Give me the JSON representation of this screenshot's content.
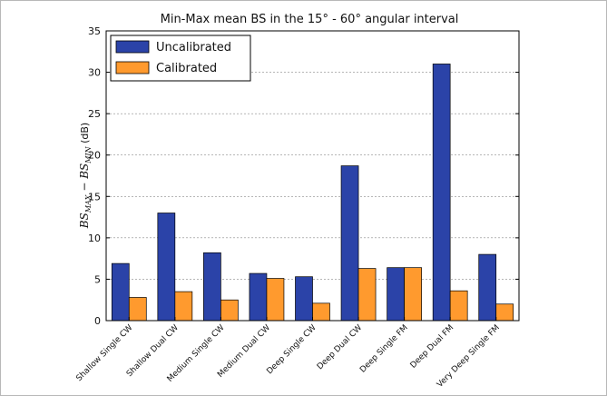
{
  "chart_data": {
    "type": "bar",
    "title": "Min-Max mean BS in the 15° - 60°  angular interval",
    "ylabel": "BS_MAX − BS_MIN (dB)",
    "ylabel_main": "BS",
    "ylabel_sub_max": "MAX",
    "ylabel_minus": " − ",
    "ylabel_sub_min": "MIN",
    "ylabel_unit": " (dB)",
    "xlabel": "",
    "ylim": [
      0,
      35
    ],
    "yticks": [
      0,
      5,
      10,
      15,
      20,
      25,
      30,
      35
    ],
    "grid": "horizontal-dashed",
    "legend_position": "top-left",
    "categories": [
      "Shallow Single CW",
      "Shallow Dual CW",
      "Medium Single CW",
      "Medium Dual CW",
      "Deep Single CW",
      "Deep Dual CW",
      "Deep Single FM",
      "Deep Dual FM",
      "Very Deep Single FM"
    ],
    "series": [
      {
        "name": "Uncalibrated",
        "color": "#2b43a8",
        "values": [
          6.9,
          13.0,
          8.2,
          5.7,
          5.3,
          18.7,
          6.4,
          31.0,
          8.0
        ]
      },
      {
        "name": "Calibrated",
        "color": "#ff9a2e",
        "values": [
          2.8,
          3.5,
          2.5,
          5.1,
          2.1,
          6.3,
          6.4,
          3.6,
          2.0
        ]
      }
    ]
  }
}
